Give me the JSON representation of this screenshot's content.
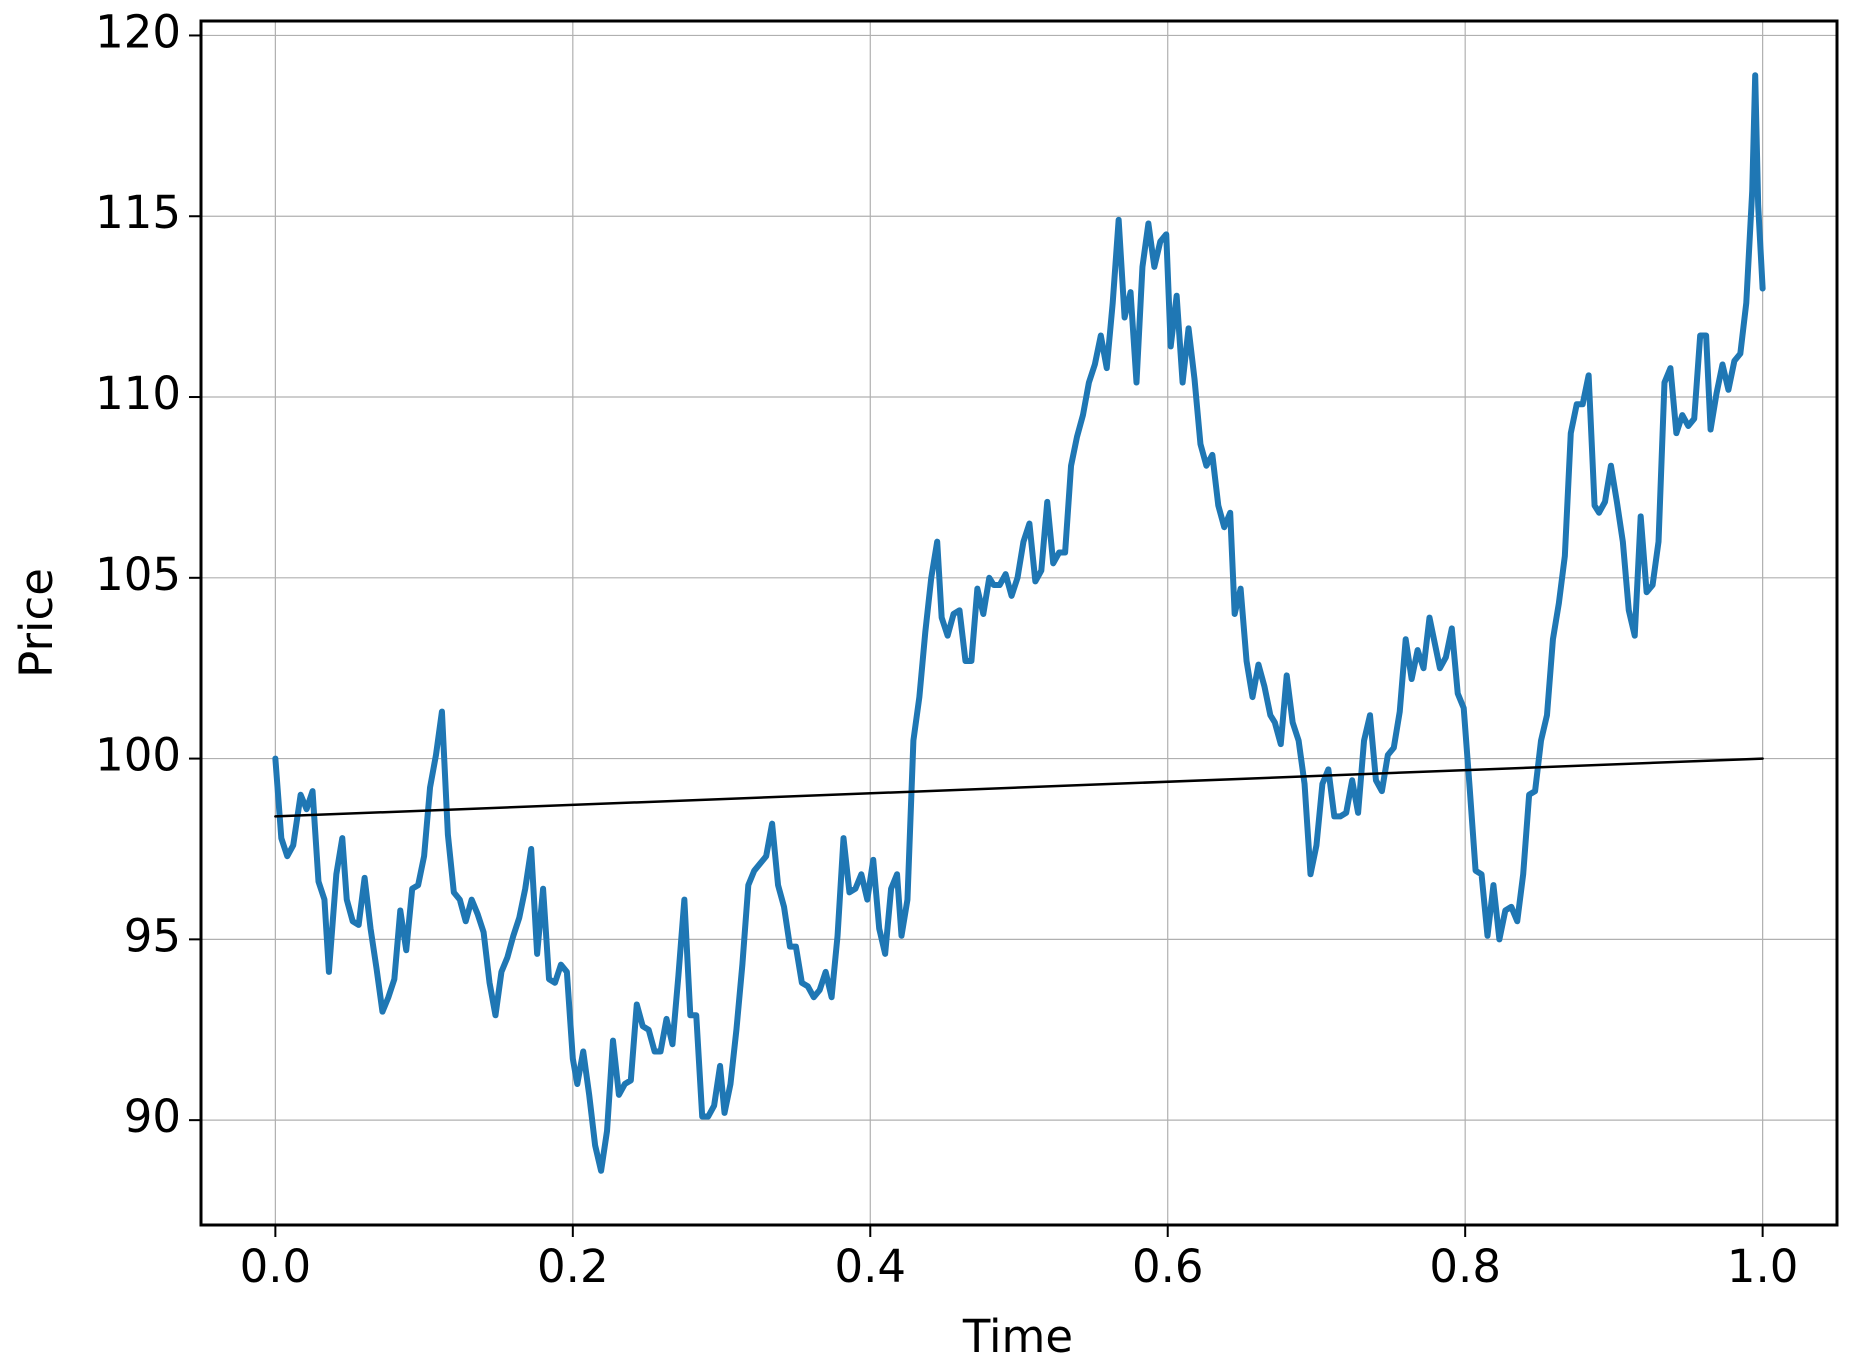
{
  "chart_data": {
    "type": "line",
    "xlabel": "Time",
    "ylabel": "Price",
    "xlim": [
      -0.05,
      1.05
    ],
    "ylim": [
      87.1,
      120.4
    ],
    "xticks": [
      {
        "value": 0,
        "label": "0.0"
      },
      0.2,
      0.4,
      0.6,
      0.8,
      {
        "value": 1,
        "label": "1.0"
      }
    ],
    "yticks": [
      90,
      95,
      100,
      105,
      110,
      115,
      120
    ],
    "grid": true,
    "series": [
      {
        "color": "#1f77b4",
        "width": 6,
        "x": [
          0,
          0.004,
          0.008,
          0.012,
          0.017,
          0.021,
          0.025,
          0.029,
          0.033,
          0.036,
          0.041,
          0.045,
          0.048,
          0.052,
          0.056,
          0.06,
          0.064,
          0.068,
          0.072,
          0.076,
          0.08,
          0.084,
          0.088,
          0.092,
          0.096,
          0.1,
          0.104,
          0.108,
          0.112,
          0.116,
          0.12,
          0.124,
          0.128,
          0.132,
          0.136,
          0.14,
          0.144,
          0.148,
          0.152,
          0.156,
          0.16,
          0.164,
          0.168,
          0.172,
          0.176,
          0.18,
          0.184,
          0.188,
          0.192,
          0.196,
          0.2,
          0.203,
          0.207,
          0.211,
          0.215,
          0.219,
          0.223,
          0.227,
          0.231,
          0.235,
          0.239,
          0.243,
          0.247,
          0.251,
          0.255,
          0.259,
          0.263,
          0.267,
          0.271,
          0.275,
          0.279,
          0.283,
          0.287,
          0.291,
          0.295,
          0.299,
          0.302,
          0.306,
          0.31,
          0.314,
          0.318,
          0.322,
          0.326,
          0.33,
          0.334,
          0.338,
          0.342,
          0.346,
          0.35,
          0.354,
          0.358,
          0.362,
          0.366,
          0.37,
          0.374,
          0.378,
          0.382,
          0.386,
          0.39,
          0.394,
          0.398,
          0.402,
          0.406,
          0.41,
          0.414,
          0.418,
          0.421,
          0.425,
          0.429,
          0.433,
          0.437,
          0.441,
          0.445,
          0.448,
          0.452,
          0.456,
          0.46,
          0.464,
          0.468,
          0.472,
          0.476,
          0.48,
          0.483,
          0.487,
          0.491,
          0.495,
          0.499,
          0.503,
          0.507,
          0.511,
          0.515,
          0.519,
          0.523,
          0.527,
          0.531,
          0.535,
          0.539,
          0.543,
          0.547,
          0.551,
          0.555,
          0.559,
          0.563,
          0.567,
          0.571,
          0.575,
          0.579,
          0.583,
          0.587,
          0.591,
          0.595,
          0.599,
          0.602,
          0.606,
          0.61,
          0.614,
          0.618,
          0.622,
          0.626,
          0.63,
          0.634,
          0.638,
          0.642,
          0.645,
          0.649,
          0.653,
          0.657,
          0.661,
          0.665,
          0.669,
          0.672,
          0.676,
          0.68,
          0.684,
          0.688,
          0.692,
          0.696,
          0.7,
          0.704,
          0.708,
          0.712,
          0.716,
          0.72,
          0.724,
          0.728,
          0.732,
          0.736,
          0.74,
          0.744,
          0.748,
          0.752,
          0.756,
          0.76,
          0.764,
          0.768,
          0.772,
          0.776,
          0.78,
          0.783,
          0.787,
          0.791,
          0.795,
          0.799,
          0.803,
          0.807,
          0.811,
          0.815,
          0.819,
          0.823,
          0.827,
          0.831,
          0.835,
          0.839,
          0.843,
          0.847,
          0.851,
          0.855,
          0.859,
          0.863,
          0.867,
          0.871,
          0.875,
          0.879,
          0.883,
          0.887,
          0.89,
          0.894,
          0.898,
          0.902,
          0.906,
          0.91,
          0.914,
          0.918,
          0.922,
          0.926,
          0.93,
          0.934,
          0.938,
          0.942,
          0.946,
          0.95,
          0.954,
          0.958,
          0.962,
          0.965,
          0.969,
          0.973,
          0.977,
          0.981,
          0.985,
          0.989,
          0.993,
          0.995,
          0.997,
          1.0
        ],
        "values": [
          100.0,
          97.8,
          97.3,
          97.6,
          99.0,
          98.6,
          99.1,
          96.6,
          96.1,
          94.1,
          96.8,
          97.8,
          96.1,
          95.5,
          95.4,
          96.7,
          95.3,
          94.2,
          93.0,
          93.4,
          93.9,
          95.8,
          94.7,
          96.4,
          96.5,
          97.3,
          99.2,
          100.1,
          101.3,
          97.9,
          96.3,
          96.1,
          95.5,
          96.1,
          95.7,
          95.2,
          93.8,
          92.9,
          94.1,
          94.5,
          95.1,
          95.6,
          96.4,
          97.5,
          94.6,
          96.4,
          93.9,
          93.8,
          94.3,
          94.1,
          91.7,
          91.0,
          91.9,
          90.7,
          89.3,
          88.6,
          89.7,
          92.2,
          90.7,
          91.0,
          91.1,
          93.2,
          92.6,
          92.5,
          91.9,
          91.9,
          92.8,
          92.1,
          94.0,
          96.1,
          92.9,
          92.9,
          90.1,
          90.1,
          90.4,
          91.5,
          90.2,
          91.0,
          92.5,
          94.3,
          96.5,
          96.9,
          97.1,
          97.3,
          98.2,
          96.5,
          95.9,
          94.8,
          94.8,
          93.8,
          93.7,
          93.4,
          93.6,
          94.1,
          93.4,
          95.1,
          97.8,
          96.3,
          96.4,
          96.8,
          96.1,
          97.2,
          95.3,
          94.6,
          96.4,
          96.8,
          95.1,
          96.1,
          100.5,
          101.7,
          103.5,
          105.0,
          106.0,
          103.9,
          103.4,
          104.0,
          104.1,
          102.7,
          102.7,
          104.7,
          104.0,
          105.0,
          104.8,
          104.8,
          105.1,
          104.5,
          105.0,
          106.0,
          106.5,
          104.9,
          105.2,
          107.1,
          105.4,
          105.7,
          105.7,
          108.1,
          108.9,
          109.5,
          110.4,
          110.9,
          111.7,
          110.8,
          112.6,
          114.9,
          112.2,
          112.9,
          110.4,
          113.6,
          114.8,
          113.6,
          114.3,
          114.5,
          111.4,
          112.8,
          110.4,
          111.9,
          110.5,
          108.7,
          108.1,
          108.4,
          107.0,
          106.4,
          106.8,
          104.0,
          104.7,
          102.7,
          101.7,
          102.6,
          102.0,
          101.2,
          101.0,
          100.4,
          102.3,
          101.0,
          100.5,
          99.3,
          96.8,
          97.6,
          99.3,
          99.7,
          98.4,
          98.4,
          98.5,
          99.4,
          98.5,
          100.5,
          101.2,
          99.4,
          99.1,
          100.1,
          100.3,
          101.3,
          103.3,
          102.2,
          103.0,
          102.5,
          103.9,
          103.1,
          102.5,
          102.8,
          103.6,
          101.8,
          101.4,
          99.2,
          96.9,
          96.8,
          95.1,
          96.5,
          95.0,
          95.8,
          95.9,
          95.5,
          96.8,
          99.0,
          99.1,
          100.5,
          101.2,
          103.3,
          104.3,
          105.6,
          109.0,
          109.8,
          109.8,
          110.6,
          107.0,
          106.8,
          107.1,
          108.1,
          107.1,
          106.0,
          104.1,
          103.4,
          106.7,
          104.6,
          104.8,
          106.0,
          110.4,
          110.8,
          109.0,
          109.5,
          109.2,
          109.4,
          111.7,
          111.7,
          109.1,
          110.1,
          110.9,
          110.2,
          111.0,
          111.2,
          112.6,
          115.7,
          118.9,
          115.3,
          113.0
        ]
      },
      {
        "color": "#000000",
        "width": 2.5,
        "x": [
          0,
          1
        ],
        "values": [
          98.4,
          100.0
        ]
      }
    ]
  }
}
